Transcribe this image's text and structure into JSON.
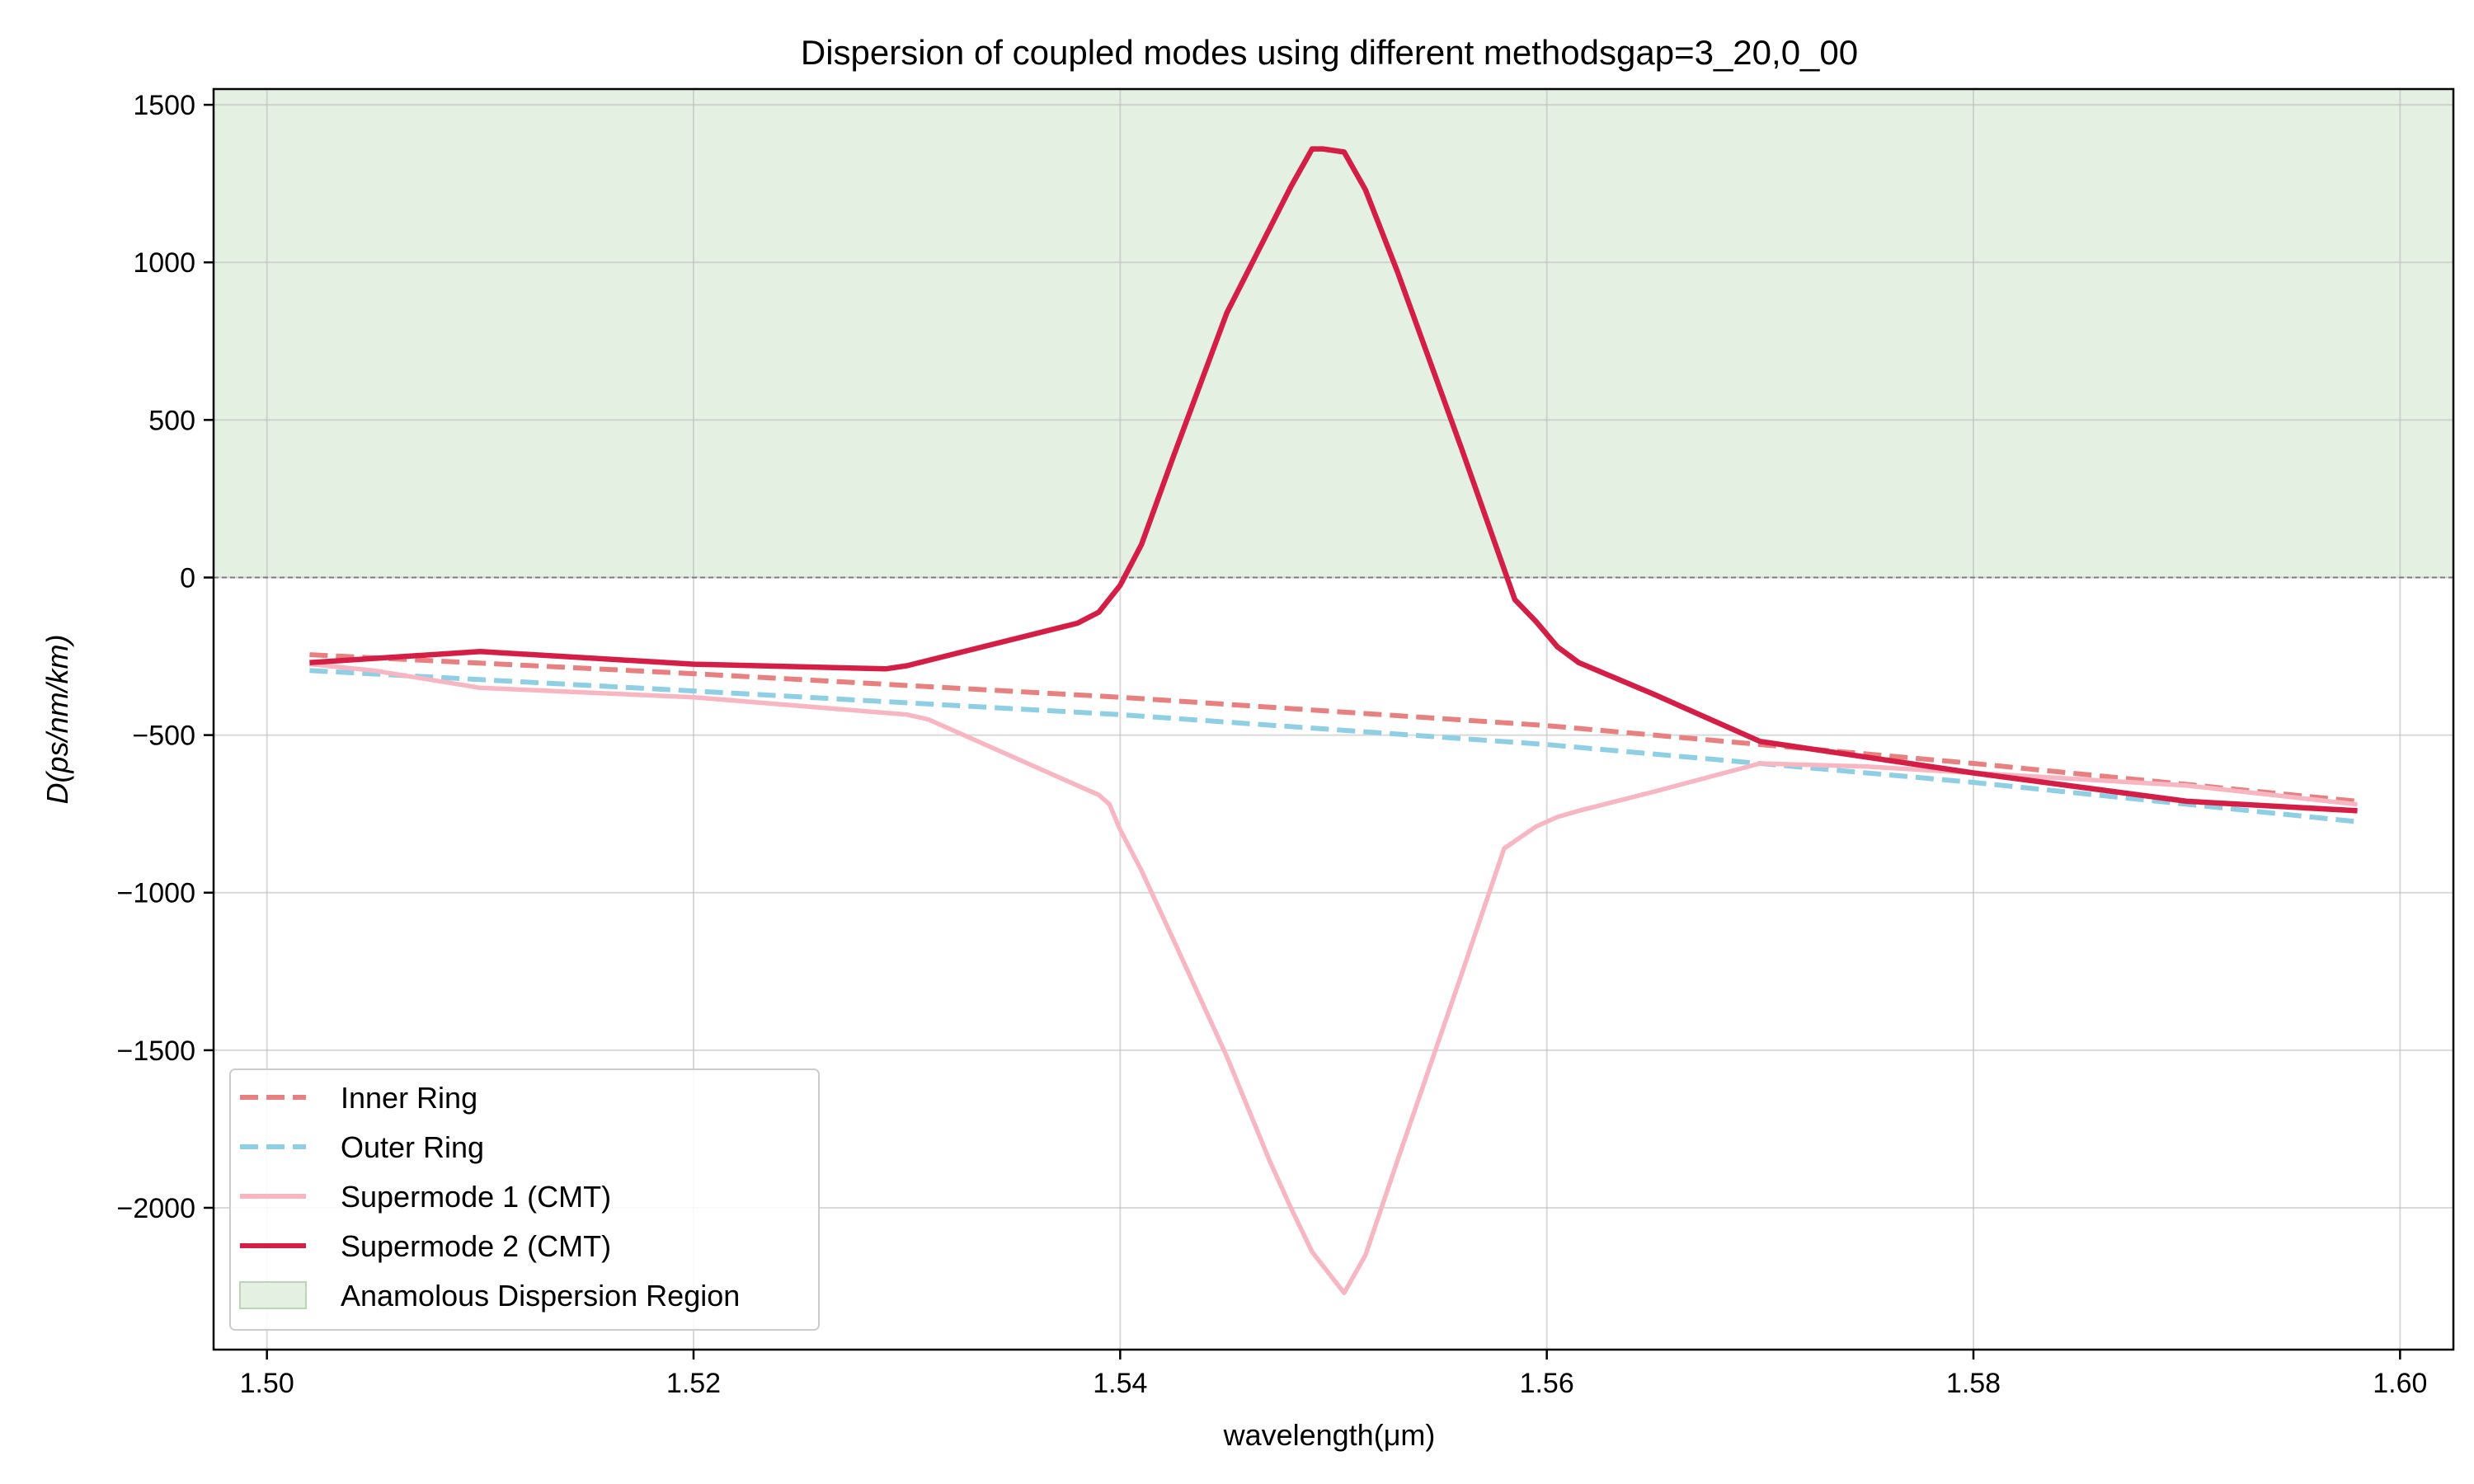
{
  "chart_data": {
    "type": "line",
    "title": "Dispersion of coupled modes using different methodsgap=3_20,0_00",
    "xlabel": "wavelength(μm)",
    "ylabel": "D(ps/nm/km)",
    "xlim": [
      1.4975,
      1.6025
    ],
    "ylim": [
      -2450,
      1550
    ],
    "xticks": [
      1.5,
      1.52,
      1.54,
      1.56,
      1.58,
      1.6
    ],
    "xtick_labels": [
      "1.50",
      "1.52",
      "1.54",
      "1.56",
      "1.58",
      "1.60"
    ],
    "yticks": [
      1500,
      1000,
      500,
      0,
      -500,
      -1000,
      -1500,
      -2000
    ],
    "ytick_labels": [
      "1500",
      "1000",
      "500",
      "0",
      "−500",
      "−1000",
      "−1500",
      "−2000"
    ],
    "grid": true,
    "legend_position": "lower-left",
    "region": {
      "name": "Anamolous Dispersion Region",
      "y_from": 0,
      "y_to": 1550,
      "color": "#e4f0e2"
    },
    "series": [
      {
        "name": "Inner Ring",
        "color": "#e98080",
        "dashed": true,
        "x": [
          1.502,
          1.52,
          1.54,
          1.56,
          1.58,
          1.598
        ],
        "y": [
          -245,
          -305,
          -380,
          -470,
          -590,
          -710
        ]
      },
      {
        "name": "Outer Ring",
        "color": "#8ecfe6",
        "dashed": true,
        "x": [
          1.502,
          1.52,
          1.54,
          1.56,
          1.58,
          1.598
        ],
        "y": [
          -295,
          -360,
          -435,
          -530,
          -650,
          -775
        ]
      },
      {
        "name": "Supermode 1 (CMT)",
        "color": "#f7b6c2",
        "dashed": false,
        "x": [
          1.502,
          1.505,
          1.51,
          1.52,
          1.53,
          1.531,
          1.538,
          1.539,
          1.5395,
          1.54,
          1.541,
          1.5425,
          1.545,
          1.547,
          1.548,
          1.549,
          1.5505,
          1.5515,
          1.553,
          1.556,
          1.558,
          1.5595,
          1.5605,
          1.5615,
          1.565,
          1.57,
          1.575,
          1.58,
          1.59,
          1.598
        ],
        "y": [
          -275,
          -295,
          -350,
          -380,
          -435,
          -450,
          -660,
          -690,
          -720,
          -800,
          -930,
          -1150,
          -1520,
          -1850,
          -2000,
          -2140,
          -2270,
          -2150,
          -1850,
          -1260,
          -860,
          -790,
          -760,
          -740,
          -680,
          -590,
          -600,
          -620,
          -660,
          -720
        ]
      },
      {
        "name": "Supermode 2 (CMT)",
        "color": "#d41e46",
        "dashed": false,
        "x": [
          1.502,
          1.51,
          1.52,
          1.529,
          1.53,
          1.538,
          1.539,
          1.54,
          1.541,
          1.5425,
          1.545,
          1.548,
          1.549,
          1.5495,
          1.5505,
          1.5515,
          1.553,
          1.556,
          1.5585,
          1.5595,
          1.5605,
          1.5615,
          1.565,
          1.57,
          1.58,
          1.59,
          1.598
        ],
        "y": [
          -270,
          -235,
          -275,
          -290,
          -280,
          -145,
          -110,
          -25,
          105,
          385,
          840,
          1240,
          1360,
          1360,
          1350,
          1230,
          970,
          410,
          -70,
          -140,
          -220,
          -270,
          -370,
          -520,
          -620,
          -710,
          -740
        ]
      }
    ]
  }
}
